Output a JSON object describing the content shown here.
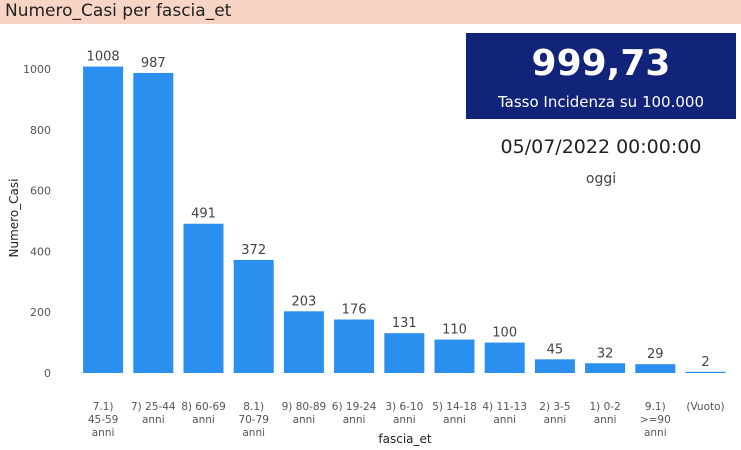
{
  "header": {
    "title": "Numero_Casi per fascia_et"
  },
  "kpi": {
    "value": "999,73",
    "label": "Tasso Incidenza su 100.000"
  },
  "date_card": {
    "value": "05/07/2022 00:00:00",
    "label": "oggi"
  },
  "colors": {
    "bar": "#2b8ff0",
    "header_bg": "#f8d4c4",
    "kpi_bg": "#12237a"
  },
  "chart_data": {
    "type": "bar",
    "xlabel": "fascia_et",
    "ylabel": "Numero_Casi",
    "ylim": [
      0,
      1000
    ],
    "yticks": [
      0,
      200,
      400,
      600,
      800,
      1000
    ],
    "grid": false,
    "categories": [
      [
        "7.1)",
        "45-59",
        "anni"
      ],
      [
        "7) 25-44",
        "anni"
      ],
      [
        "8) 60-69",
        "anni"
      ],
      [
        "8.1)",
        "70-79",
        "anni"
      ],
      [
        "9) 80-89",
        "anni"
      ],
      [
        "6) 19-24",
        "anni"
      ],
      [
        "3) 6-10",
        "anni"
      ],
      [
        "5) 14-18",
        "anni"
      ],
      [
        "4) 11-13",
        "anni"
      ],
      [
        "2) 3-5",
        "anni"
      ],
      [
        "1) 0-2",
        "anni"
      ],
      [
        "9.1)",
        ">=90",
        "anni"
      ],
      [
        "(Vuoto)"
      ]
    ],
    "values": [
      1008,
      987,
      491,
      372,
      203,
      176,
      131,
      110,
      100,
      45,
      32,
      29,
      2
    ]
  }
}
